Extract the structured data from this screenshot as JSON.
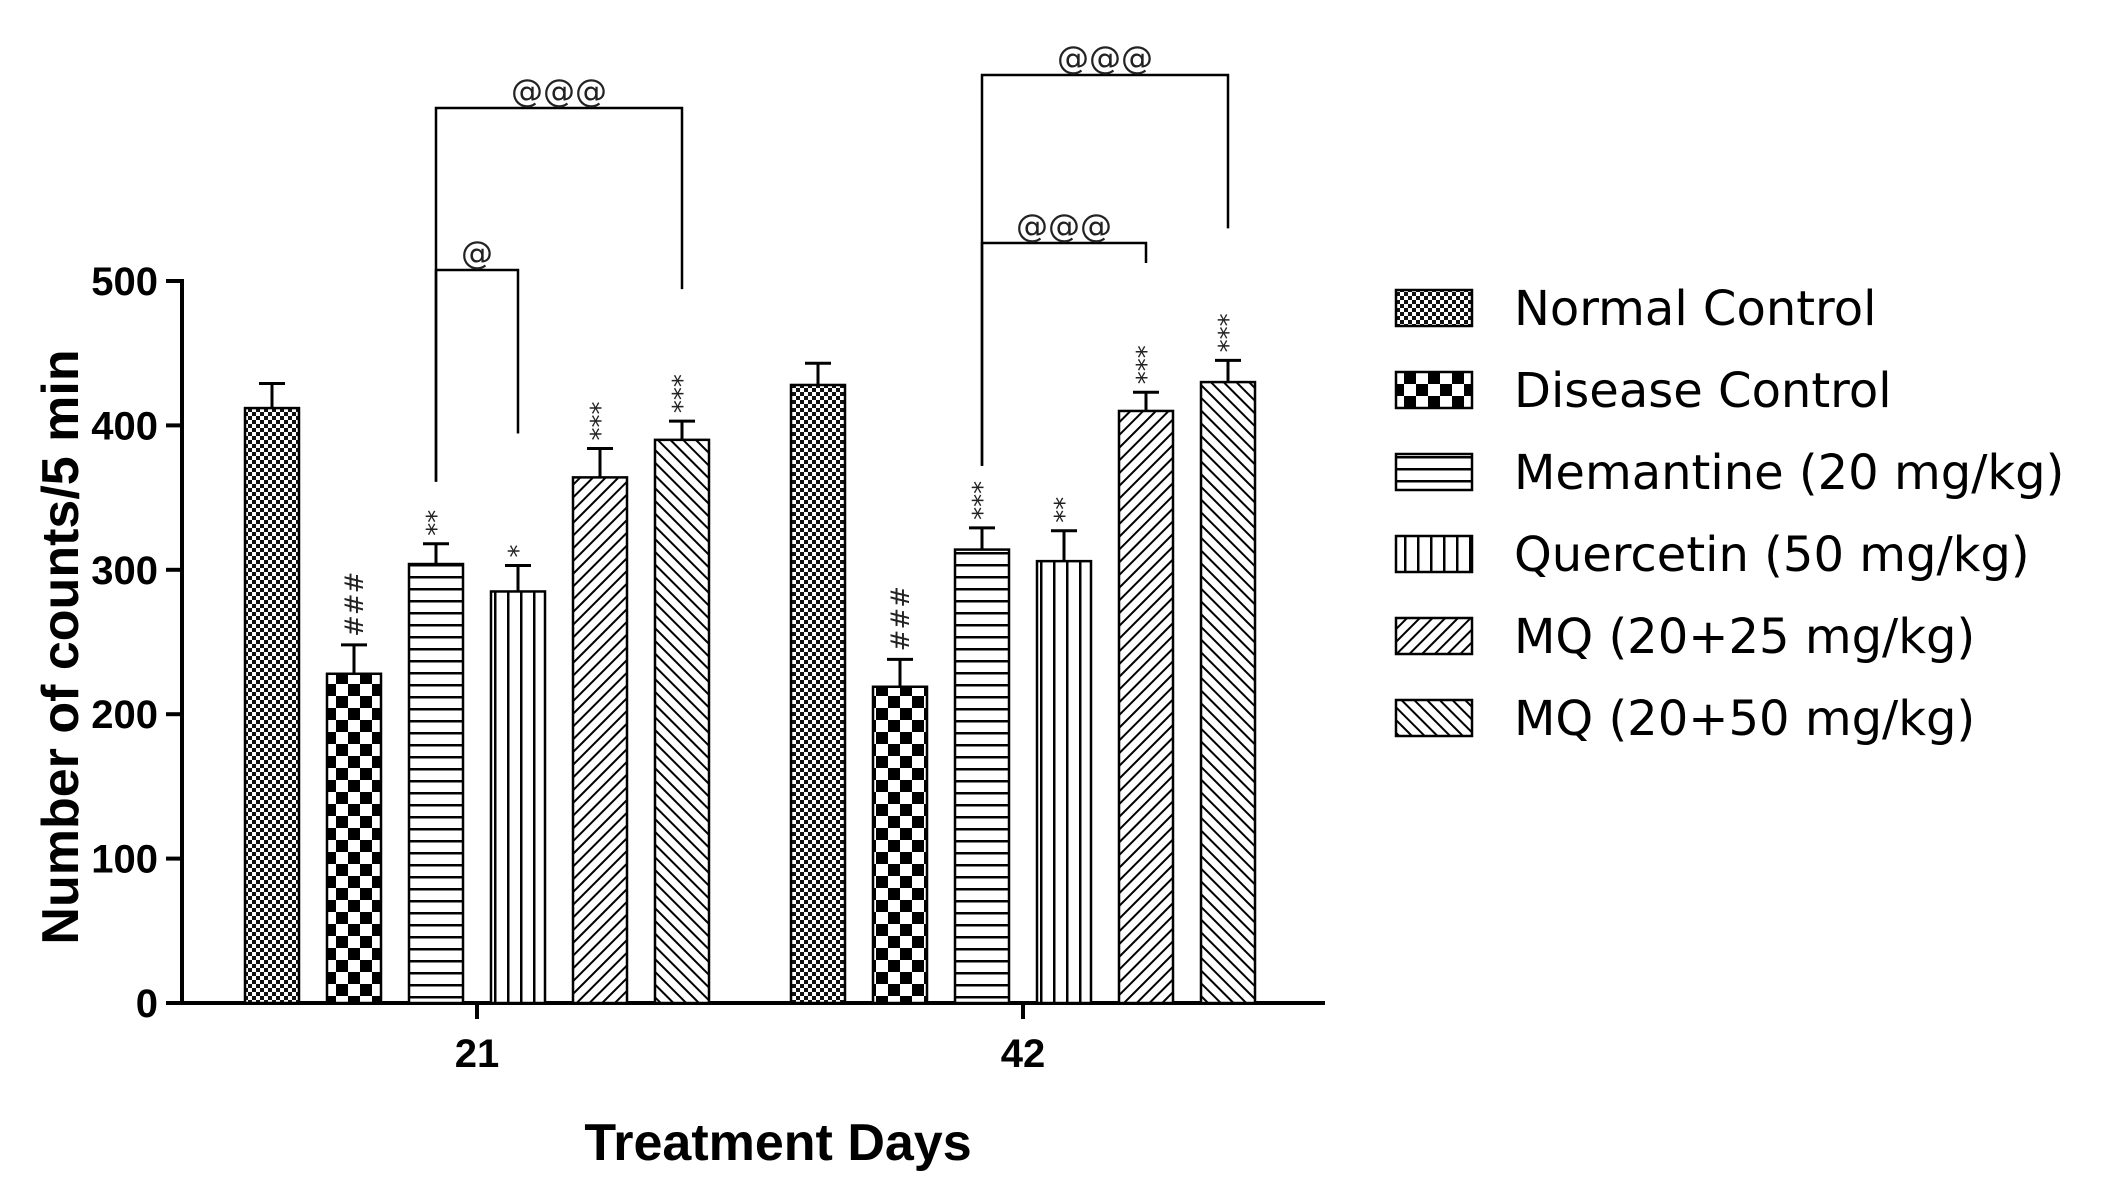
{
  "chart_data": {
    "type": "bar",
    "title": "",
    "xlabel": "Treatment Days",
    "ylabel": "Number of counts/5 min",
    "ylim": [
      0,
      500
    ],
    "yticks": [
      0,
      100,
      200,
      300,
      400,
      500
    ],
    "categories": [
      "21",
      "42"
    ],
    "series": [
      {
        "name": "Normal Control",
        "pattern": "check-fine",
        "values": [
          412,
          428
        ],
        "errors": [
          17,
          15
        ],
        "labels": [
          "",
          ""
        ]
      },
      {
        "name": "Disease Control",
        "pattern": "check-coarse",
        "values": [
          228,
          219
        ],
        "errors": [
          20,
          19
        ],
        "labels": [
          "###",
          "###"
        ]
      },
      {
        "name": "Memantine (20 mg/kg)",
        "pattern": "horizontal",
        "values": [
          304,
          314
        ],
        "errors": [
          14,
          15
        ],
        "labels": [
          "**",
          "***"
        ]
      },
      {
        "name": "Quercetin (50 mg/kg)",
        "pattern": "vertical",
        "values": [
          285,
          306
        ],
        "errors": [
          18,
          21
        ],
        "labels": [
          "*",
          "**"
        ]
      },
      {
        "name": "MQ (20+25 mg/kg)",
        "pattern": "diag-up",
        "values": [
          364,
          410
        ],
        "errors": [
          20,
          13
        ],
        "labels": [
          "***",
          "***"
        ]
      },
      {
        "name": "MQ (20+50 mg/kg)",
        "pattern": "diag-down",
        "values": [
          390,
          430
        ],
        "errors": [
          13,
          15
        ],
        "labels": [
          "***",
          "***"
        ]
      }
    ],
    "comparisons": [
      {
        "category": 0,
        "from_series": 2,
        "to_series": 3,
        "label": "@"
      },
      {
        "category": 0,
        "from_series": 2,
        "to_series": 5,
        "label": "@@@"
      },
      {
        "category": 1,
        "from_series": 2,
        "to_series": 4,
        "label": "@@@"
      },
      {
        "category": 1,
        "from_series": 2,
        "to_series": 5,
        "label": "@@@"
      }
    ],
    "legend_position": "right"
  }
}
